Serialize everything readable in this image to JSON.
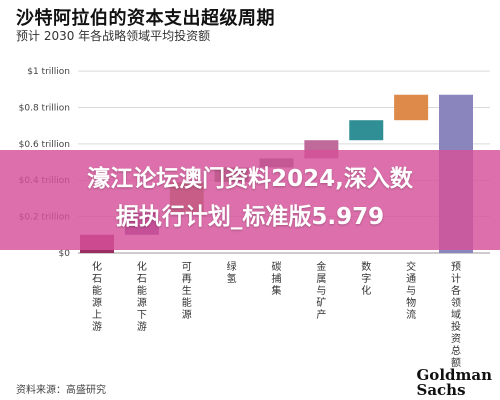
{
  "header": {
    "title": "沙特阿拉伯的资本支出超级周期",
    "subtitle": "预计 2030 年各战略领域平均投资额"
  },
  "overlay": {
    "line1": "濠江论坛澳门资料2024,深入数",
    "line2": "据执行计划_标准版5.979"
  },
  "footer": {
    "source": "资料来源：高盛研究",
    "logo_line1": "Goldman",
    "logo_line2": "Sachs"
  },
  "colors": {
    "grid": "#d9d9d9",
    "axis_text": "#444444"
  },
  "chart_data": {
    "type": "bar",
    "subtype": "waterfall",
    "categories": [
      "化石能源上游",
      "化石能源下游",
      "可再生能源",
      "绿氢",
      "碳捕集",
      "金属与矿产",
      "数字化",
      "交通与物流",
      "预计各领域投资总额"
    ],
    "yticks": [
      "$0",
      "$0.2 trillion",
      "$0.4 trillion",
      "$0.6 trillion",
      "$0.8 trillion",
      "$1 trillion"
    ],
    "ytick_values": [
      0,
      0.2,
      0.4,
      0.6,
      0.8,
      1.0
    ],
    "ylim": [
      0,
      1.05
    ],
    "bars": [
      {
        "start": 0.0,
        "end": 0.1,
        "color": "#9b2d63"
      },
      {
        "start": 0.1,
        "end": 0.22,
        "color": "#7a4d8a"
      },
      {
        "start": 0.22,
        "end": 0.39,
        "color": "#8d9b3a"
      },
      {
        "start": 0.39,
        "end": 0.47,
        "color": "#6b8a63"
      },
      {
        "start": 0.47,
        "end": 0.52,
        "color": "#6d7a7a"
      },
      {
        "start": 0.52,
        "end": 0.62,
        "color": "#bf6a9a"
      },
      {
        "start": 0.62,
        "end": 0.73,
        "color": "#2f8f95"
      },
      {
        "start": 0.73,
        "end": 0.87,
        "color": "#dd8a4a"
      },
      {
        "start": 0.0,
        "end": 0.87,
        "color": "#8a86bd"
      }
    ],
    "grid": true
  }
}
